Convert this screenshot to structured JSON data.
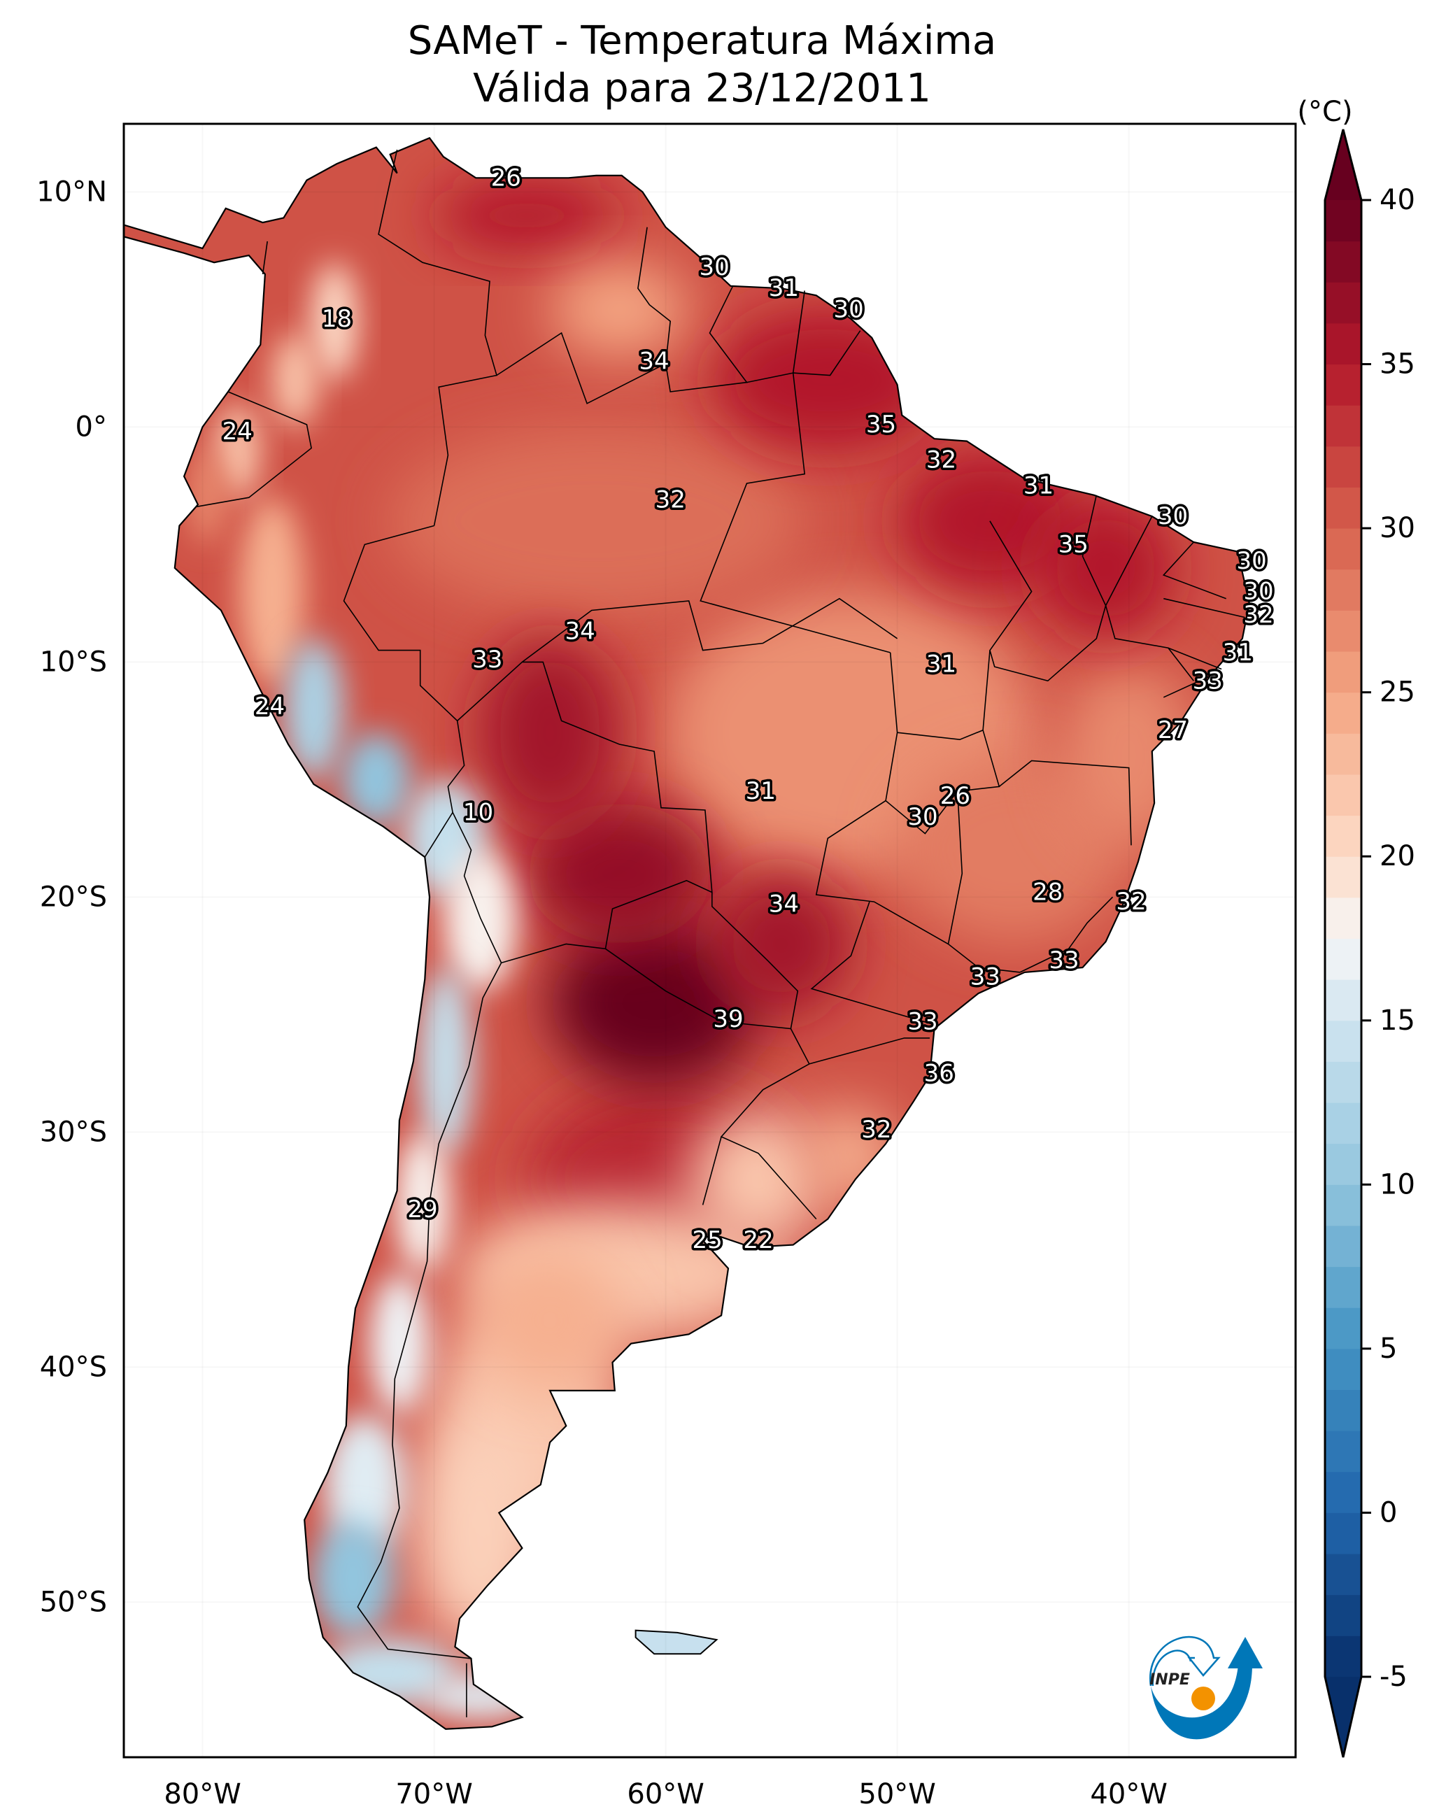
{
  "title_line1": "SAMeT - Temperatura Máxima",
  "title_line2": "Válida para 23/12/2011",
  "chart_data": {
    "type": "heatmap",
    "title": "SAMeT - Temperatura Máxima",
    "subtitle": "Válida para 23/12/2011",
    "variable": "Maximum temperature",
    "units_label": "(°C)",
    "xlim": [
      -83.4,
      -32.8
    ],
    "ylim": [
      -56.6,
      12.9
    ],
    "x_ticks": [
      {
        "value": -80,
        "label": "80°W"
      },
      {
        "value": -70,
        "label": "70°W"
      },
      {
        "value": -60,
        "label": "60°W"
      },
      {
        "value": -50,
        "label": "50°W"
      },
      {
        "value": -40,
        "label": "40°W"
      }
    ],
    "y_ticks": [
      {
        "value": 10,
        "label": "10°N"
      },
      {
        "value": 0,
        "label": "0°"
      },
      {
        "value": -10,
        "label": "10°S"
      },
      {
        "value": -20,
        "label": "20°S"
      },
      {
        "value": -30,
        "label": "30°S"
      },
      {
        "value": -40,
        "label": "40°S"
      },
      {
        "value": -50,
        "label": "50°S"
      }
    ],
    "colorbar": {
      "min": -5,
      "max": 40,
      "extend": "both",
      "ticks": [
        -5,
        0,
        5,
        10,
        15,
        20,
        25,
        30,
        35,
        40
      ],
      "colormap": "RdBu_r",
      "stops": [
        {
          "value": -5,
          "color": "#08306b"
        },
        {
          "value": 0,
          "color": "#2166ac"
        },
        {
          "value": 5,
          "color": "#4393c3"
        },
        {
          "value": 10,
          "color": "#92c5de"
        },
        {
          "value": 15,
          "color": "#d1e5f0"
        },
        {
          "value": 17.5,
          "color": "#f7f7f7"
        },
        {
          "value": 20,
          "color": "#fddbc7"
        },
        {
          "value": 25,
          "color": "#f4a582"
        },
        {
          "value": 30,
          "color": "#d6604d"
        },
        {
          "value": 35,
          "color": "#b2182b"
        },
        {
          "value": 40,
          "color": "#67001f"
        }
      ]
    },
    "station_values": [
      {
        "lon": -66.9,
        "lat": 10.6,
        "value": 26
      },
      {
        "lon": -74.2,
        "lat": 4.6,
        "value": 18
      },
      {
        "lon": -57.9,
        "lat": 6.8,
        "value": 30
      },
      {
        "lon": -54.9,
        "lat": 5.9,
        "value": 31
      },
      {
        "lon": -52.1,
        "lat": 5.0,
        "value": 30
      },
      {
        "lon": -60.5,
        "lat": 2.8,
        "value": 34
      },
      {
        "lon": -78.5,
        "lat": -0.2,
        "value": 24
      },
      {
        "lon": -50.7,
        "lat": 0.1,
        "value": 35
      },
      {
        "lon": -48.1,
        "lat": -1.4,
        "value": 32
      },
      {
        "lon": -59.8,
        "lat": -3.1,
        "value": 32
      },
      {
        "lon": -43.9,
        "lat": -2.5,
        "value": 31
      },
      {
        "lon": -38.1,
        "lat": -3.8,
        "value": 30
      },
      {
        "lon": -42.4,
        "lat": -5.0,
        "value": 35
      },
      {
        "lon": -34.7,
        "lat": -5.7,
        "value": 30
      },
      {
        "lon": -34.4,
        "lat": -7.0,
        "value": 30
      },
      {
        "lon": -34.4,
        "lat": -8.0,
        "value": 32
      },
      {
        "lon": -35.3,
        "lat": -9.6,
        "value": 31
      },
      {
        "lon": -36.6,
        "lat": -10.8,
        "value": 33
      },
      {
        "lon": -38.1,
        "lat": -12.9,
        "value": 27
      },
      {
        "lon": -63.7,
        "lat": -8.7,
        "value": 34
      },
      {
        "lon": -67.7,
        "lat": -9.9,
        "value": 33
      },
      {
        "lon": -48.1,
        "lat": -10.1,
        "value": 31
      },
      {
        "lon": -77.1,
        "lat": -11.9,
        "value": 24
      },
      {
        "lon": -55.9,
        "lat": -15.5,
        "value": 31
      },
      {
        "lon": -47.5,
        "lat": -15.7,
        "value": 26
      },
      {
        "lon": -48.9,
        "lat": -16.6,
        "value": 30
      },
      {
        "lon": -68.1,
        "lat": -16.4,
        "value": 10
      },
      {
        "lon": -43.5,
        "lat": -19.8,
        "value": 28
      },
      {
        "lon": -39.9,
        "lat": -20.2,
        "value": 32
      },
      {
        "lon": -54.9,
        "lat": -20.3,
        "value": 34
      },
      {
        "lon": -46.2,
        "lat": -23.4,
        "value": 33
      },
      {
        "lon": -42.8,
        "lat": -22.7,
        "value": 33
      },
      {
        "lon": -57.3,
        "lat": -25.2,
        "value": 39
      },
      {
        "lon": -48.9,
        "lat": -25.3,
        "value": 33
      },
      {
        "lon": -48.2,
        "lat": -27.5,
        "value": 36
      },
      {
        "lon": -50.9,
        "lat": -29.9,
        "value": 32
      },
      {
        "lon": -70.5,
        "lat": -33.3,
        "value": 29
      },
      {
        "lon": -58.2,
        "lat": -34.6,
        "value": 25
      },
      {
        "lon": -56.0,
        "lat": -34.6,
        "value": 22
      }
    ],
    "field_features": [
      {
        "name": "paraguay-hot-core",
        "lon": -60.5,
        "lat": -24.5,
        "value": 40
      },
      {
        "name": "andes-cold-peru",
        "lon": -75.5,
        "lat": -11.0,
        "value": 12
      },
      {
        "name": "andes-cold-bolivia",
        "lon": -69.5,
        "lat": -17.0,
        "value": 10
      },
      {
        "name": "andes-cold-chile",
        "lon": -70.0,
        "lat": -28.5,
        "value": 12
      },
      {
        "name": "patagonia-cold",
        "lon": -73.5,
        "lat": -49.0,
        "value": 8
      }
    ]
  },
  "logo": {
    "text": "INPE",
    "colors": {
      "blue": "#0077b8",
      "orange": "#f39200"
    }
  }
}
